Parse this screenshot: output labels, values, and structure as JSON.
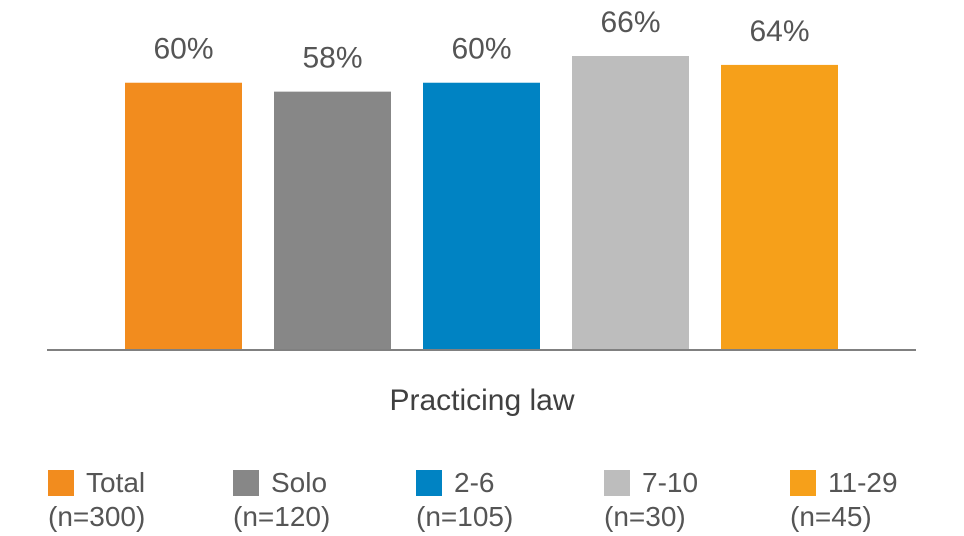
{
  "chart_data": {
    "type": "bar",
    "xlabel": "Practicing law",
    "ylim": [
      0,
      70
    ],
    "categories": [
      "Total",
      "Solo",
      "2-6",
      "7-10",
      "11-29"
    ],
    "sublabels": [
      "(n=300)",
      "(n=120)",
      "(n=105)",
      "(n=30)",
      "(n=45)"
    ],
    "values": [
      60,
      58,
      60,
      66,
      64
    ],
    "value_labels": [
      "60%",
      "58%",
      "60%",
      "66%",
      "64%"
    ],
    "colors": [
      "#F28C1E",
      "#878787",
      "#0083C3",
      "#BDBDBD",
      "#F6A01A"
    ],
    "legend_position": "bottom",
    "grid": false
  }
}
